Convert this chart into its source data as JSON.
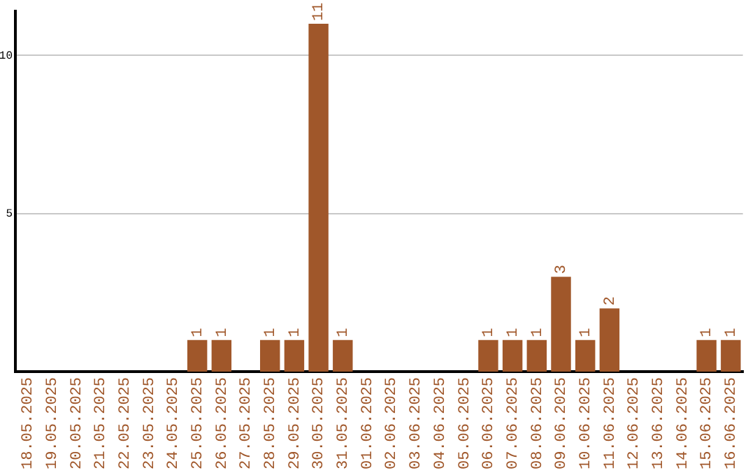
{
  "chart_data": {
    "type": "bar",
    "categories": [
      "18.05.2025",
      "19.05.2025",
      "20.05.2025",
      "21.05.2025",
      "22.05.2025",
      "23.05.2025",
      "24.05.2025",
      "25.05.2025",
      "26.05.2025",
      "27.05.2025",
      "28.05.2025",
      "29.05.2025",
      "30.05.2025",
      "31.05.2025",
      "01.06.2025",
      "02.06.2025",
      "03.06.2025",
      "04.06.2025",
      "05.06.2025",
      "06.06.2025",
      "07.06.2025",
      "08.06.2025",
      "09.06.2025",
      "10.06.2025",
      "11.06.2025",
      "12.06.2025",
      "13.06.2025",
      "14.06.2025",
      "15.06.2025",
      "16.06.2025"
    ],
    "values": [
      0,
      0,
      0,
      0,
      0,
      0,
      0,
      1,
      1,
      0,
      1,
      1,
      11,
      1,
      0,
      0,
      0,
      0,
      0,
      1,
      1,
      1,
      3,
      1,
      2,
      0,
      0,
      0,
      1,
      1
    ],
    "value_labels": [
      null,
      null,
      null,
      null,
      null,
      null,
      null,
      "1",
      "1",
      null,
      "1",
      "1",
      "11",
      "1",
      null,
      null,
      null,
      null,
      null,
      "1",
      "1",
      "1",
      "3",
      "1",
      "2",
      null,
      null,
      null,
      "1",
      "1"
    ],
    "color": "#a0572a",
    "ylim": [
      0,
      11.4
    ],
    "yticks": [
      5,
      10
    ],
    "grid": "y"
  }
}
